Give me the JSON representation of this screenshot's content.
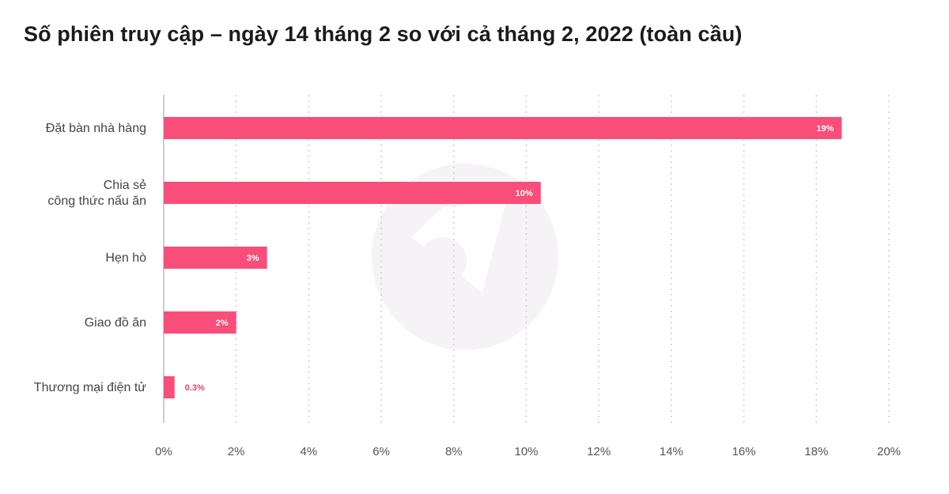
{
  "chart_data": {
    "type": "bar",
    "orientation": "horizontal",
    "title": "Số phiên truy cập – ngày 14 tháng 2 so với cả tháng 2, 2022 (toàn cầu)",
    "categories": [
      [
        "Đặt bàn nhà hàng"
      ],
      [
        "Chia sẻ",
        "công thức nấu ăn"
      ],
      [
        "Hẹn hò"
      ],
      [
        "Giao đồ ăn"
      ],
      [
        "Thương mại điện tử"
      ]
    ],
    "values": [
      18.7,
      10.4,
      2.85,
      2.0,
      0.3
    ],
    "value_labels": [
      "19%",
      "10%",
      "3%",
      "2%",
      "0.3%"
    ],
    "xlim": [
      0,
      20
    ],
    "xticks": [
      0,
      2,
      4,
      6,
      8,
      10,
      12,
      14,
      16,
      18,
      20
    ],
    "xtick_labels": [
      "0%",
      "2%",
      "4%",
      "6%",
      "8%",
      "10%",
      "12%",
      "14%",
      "16%",
      "18%",
      "20%"
    ],
    "grid": true,
    "bar_color": "#f94e7a",
    "outside_label_color": "#e8426e"
  }
}
